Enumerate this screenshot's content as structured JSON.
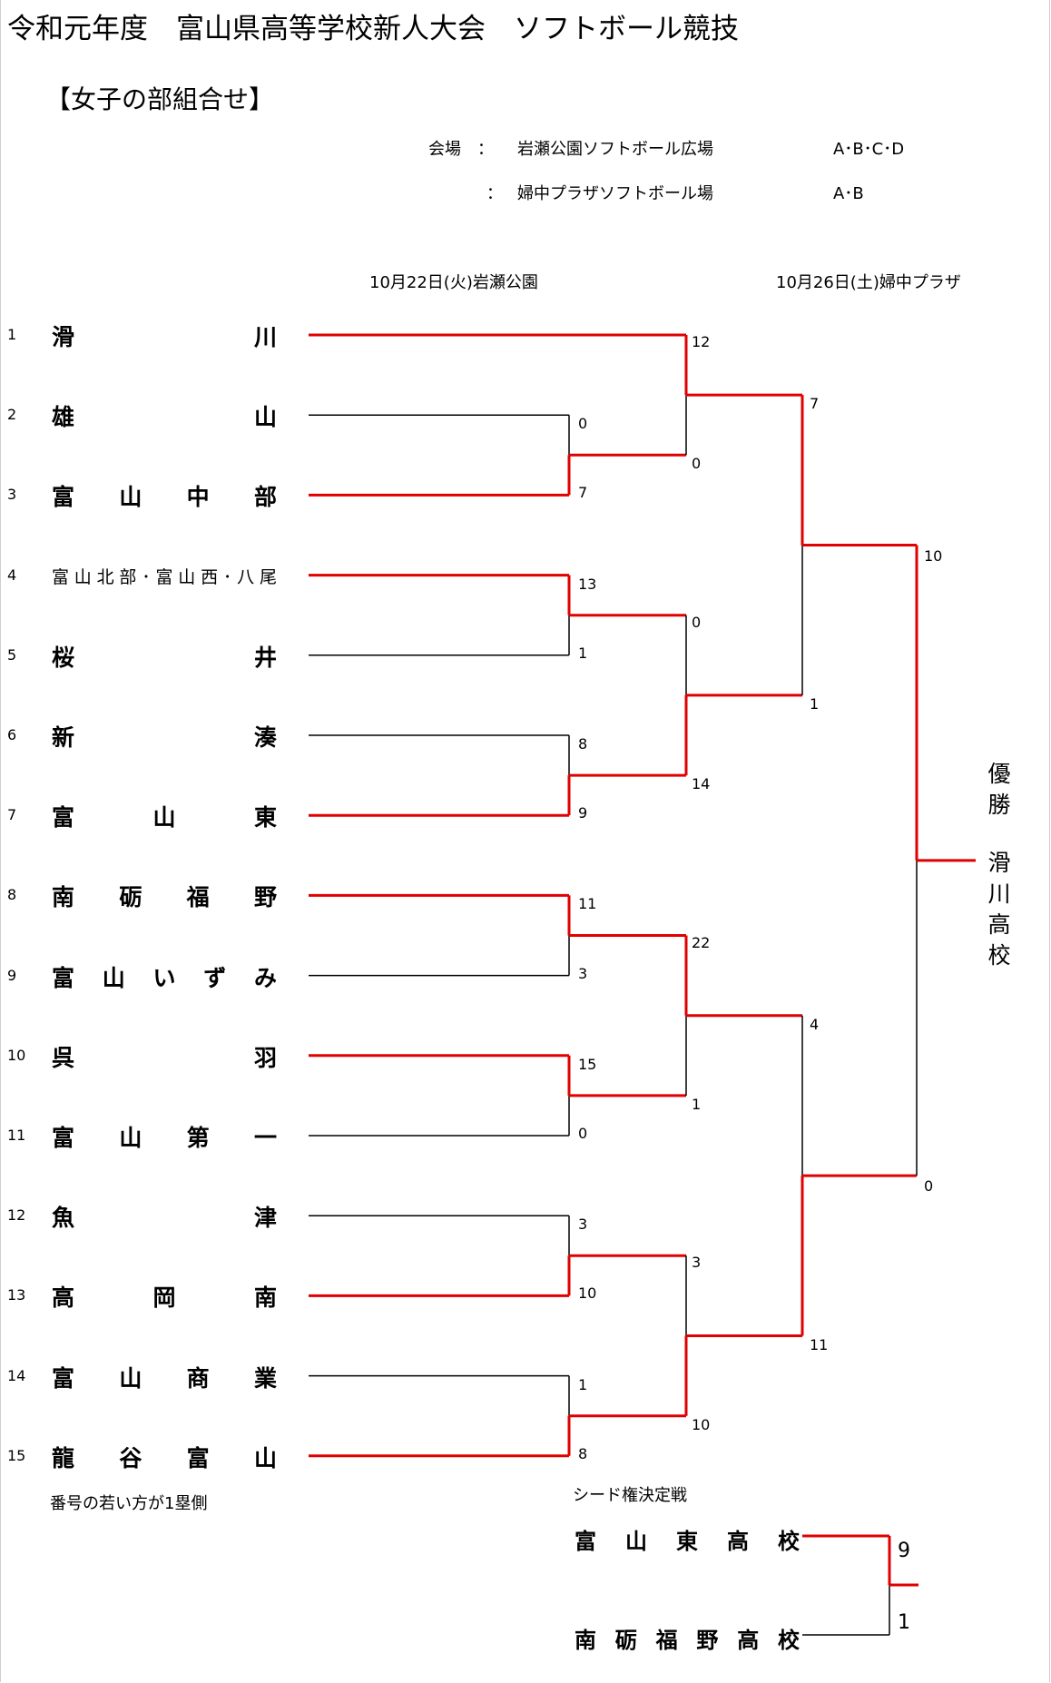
{
  "title": "令和元年度　富山県高等学校新人大会　ソフトボール競技",
  "subtitle": "【女子の部組合せ】",
  "venues": [
    {
      "label": "会場　：",
      "name": "岩瀬公園ソフトボール広場",
      "fields": "A･B･C･D"
    },
    {
      "label": "：",
      "name": "婦中プラザソフトボール場",
      "fields": "A･B"
    }
  ],
  "dates": {
    "day1": "10月22日(火)岩瀬公園",
    "day2": "10月26日(土)婦中プラザ"
  },
  "teams": [
    {
      "no": "1",
      "name": "滑　　川"
    },
    {
      "no": "2",
      "name": "雄　　山"
    },
    {
      "no": "3",
      "name": "富山中部"
    },
    {
      "no": "4",
      "name": "富山北部･富山西･八尾"
    },
    {
      "no": "5",
      "name": "桜　　井"
    },
    {
      "no": "6",
      "name": "新　　湊"
    },
    {
      "no": "7",
      "name": "富山東"
    },
    {
      "no": "8",
      "name": "南砺福野"
    },
    {
      "no": "9",
      "name": "富山いずみ"
    },
    {
      "no": "10",
      "name": "呉　　羽"
    },
    {
      "no": "11",
      "name": "富山第一"
    },
    {
      "no": "12",
      "name": "魚　　津"
    },
    {
      "no": "13",
      "name": "高岡南"
    },
    {
      "no": "14",
      "name": "富山商業"
    },
    {
      "no": "15",
      "name": "龍谷富山"
    }
  ],
  "scores": {
    "r1": [
      "0",
      "7",
      "13",
      "1",
      "8",
      "9",
      "11",
      "3",
      "15",
      "0",
      "3",
      "10",
      "1",
      "8"
    ],
    "r2": [
      "12",
      "0",
      "0",
      "14",
      "22",
      "1",
      "3",
      "10"
    ],
    "qf": [
      "7",
      "1",
      "4",
      "11"
    ],
    "final": [
      "10",
      "0"
    ]
  },
  "champion": {
    "label": "優勝",
    "team": "滑川高校"
  },
  "note": "番号の若い方が1塁側",
  "seed_match": {
    "title": "シード権決定戦",
    "team1": "富山東高校",
    "team2": "南砺福野高校",
    "score1": "9",
    "score2": "1"
  },
  "colors": {
    "winner_line": "#e00000",
    "loser_line": "#000000"
  }
}
